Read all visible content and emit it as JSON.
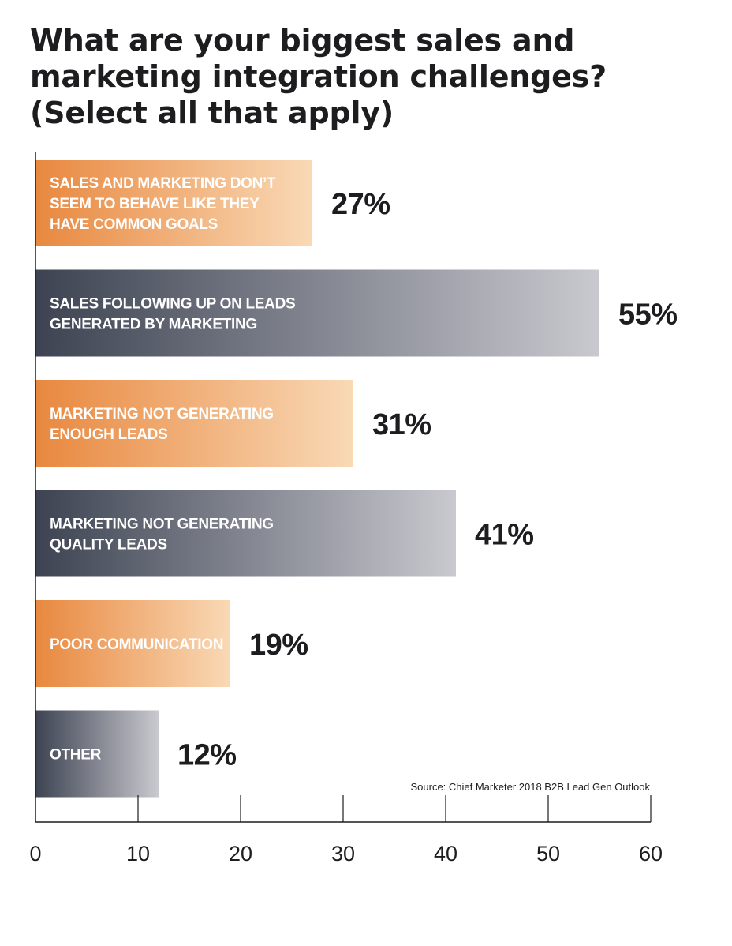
{
  "chart_data": {
    "type": "bar",
    "orientation": "horizontal",
    "title_lines": [
      "What are your biggest sales and",
      "marketing integration challenges?",
      "(Select all that apply)"
    ],
    "categories": [
      [
        "SALES AND MARKETING DON’T",
        "SEEM TO BEHAVE LIKE THEY",
        "HAVE COMMON GOALS"
      ],
      [
        "SALES FOLLOWING UP ON LEADS",
        "GENERATED BY MARKETING"
      ],
      [
        "MARKETING NOT GENERATING",
        "ENOUGH LEADS"
      ],
      [
        "MARKETING NOT GENERATING",
        "QUALITY LEADS"
      ],
      [
        "POOR COMMUNICATION"
      ],
      [
        "OTHER"
      ]
    ],
    "values": [
      27,
      55,
      31,
      41,
      19,
      12
    ],
    "value_labels": [
      "27%",
      "55%",
      "31%",
      "41%",
      "19%",
      "12%"
    ],
    "bar_styles": [
      "orange",
      "slate",
      "orange",
      "slate",
      "orange",
      "slate"
    ],
    "colors": {
      "orange_start": "#e8883f",
      "orange_end": "#f9d9b6",
      "slate_start": "#3d4352",
      "slate_end": "#c9c9cf",
      "axis": "#1d1d1f"
    },
    "xlim": [
      0,
      60
    ],
    "xticks": [
      0,
      10,
      20,
      30,
      40,
      50,
      60
    ],
    "xtick_labels": [
      "0",
      "10",
      "20",
      "30",
      "40",
      "50",
      "60"
    ],
    "source": "Source: Chief Marketer 2018 B2B Lead Gen Outlook",
    "grid": false
  }
}
